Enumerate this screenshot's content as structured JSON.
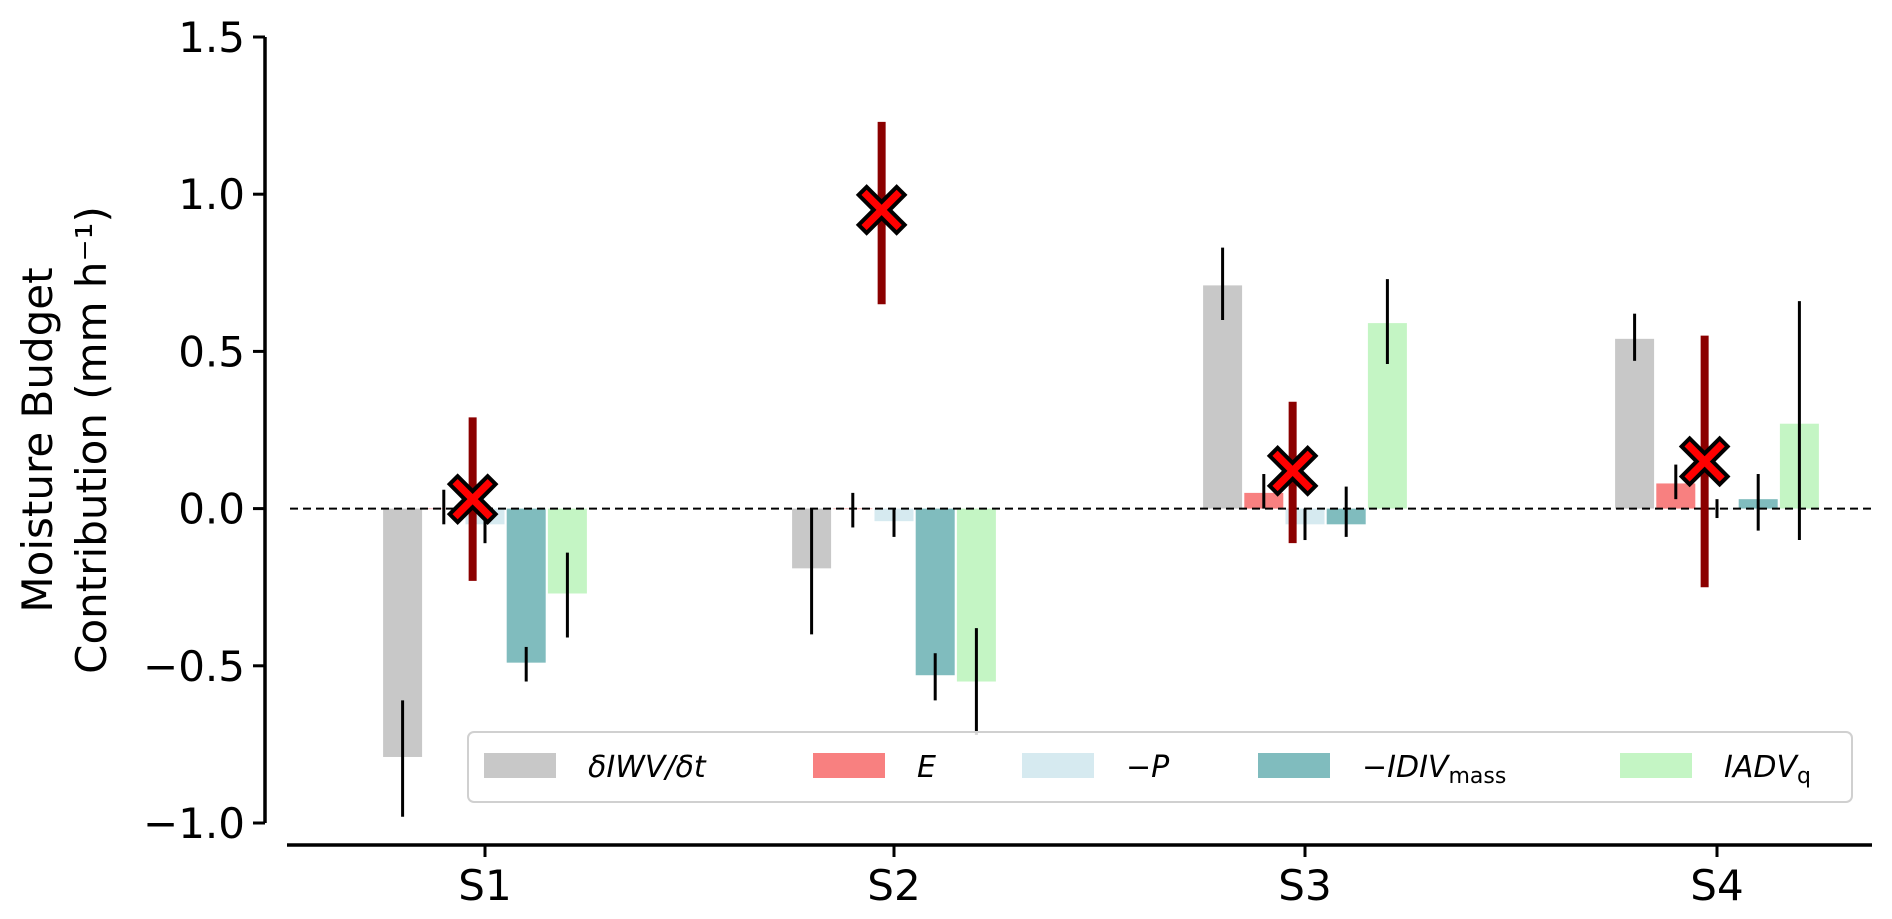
{
  "chart_data": {
    "type": "bar",
    "title": "",
    "xlabel": "",
    "ylabel_line1": "Moisture Budget",
    "ylabel_line2": "Contribution (mm h⁻¹)",
    "ylim": [
      -1.0,
      1.5
    ],
    "yticks": [
      -1.0,
      -0.5,
      0.0,
      0.5,
      1.0,
      1.5
    ],
    "ytick_labels": [
      "−1.0",
      "−0.5",
      "0.0",
      "0.5",
      "1.0",
      "1.5"
    ],
    "categories": [
      "S1",
      "S2",
      "S3",
      "S4"
    ],
    "zero_line": "dashed",
    "grid": false,
    "legend_position": "bottom",
    "series": [
      {
        "name": "δIWV/δt",
        "name_main": "δIWV/δt",
        "name_sub": "",
        "color": "#c8c8c8",
        "values": [
          -0.79,
          -0.19,
          0.71,
          0.54
        ],
        "err_low": [
          -0.98,
          -0.4,
          0.6,
          0.47
        ],
        "err_high": [
          -0.61,
          0.0,
          0.83,
          0.62
        ]
      },
      {
        "name": "E",
        "name_main": "E",
        "name_sub": "",
        "color": "#f88080",
        "values": [
          0.0,
          0.0,
          0.05,
          0.08
        ],
        "err_low": [
          -0.05,
          -0.06,
          0.0,
          0.03
        ],
        "err_high": [
          0.06,
          0.05,
          0.11,
          0.14
        ]
      },
      {
        "name": "−P",
        "name_main": "−P",
        "name_sub": "",
        "color": "#d6eaf0",
        "values": [
          -0.05,
          -0.04,
          -0.05,
          0.0
        ],
        "err_low": [
          -0.11,
          -0.09,
          -0.1,
          -0.03
        ],
        "err_high": [
          0.0,
          0.0,
          0.0,
          0.03
        ]
      },
      {
        "name": "−IDIVmass",
        "name_main": "−IDIV",
        "name_sub": "mass",
        "color": "#80bcbe",
        "values": [
          -0.49,
          -0.53,
          -0.05,
          0.03
        ],
        "err_low": [
          -0.55,
          -0.61,
          -0.09,
          -0.07
        ],
        "err_high": [
          -0.44,
          -0.46,
          0.07,
          0.11
        ]
      },
      {
        "name": "IADVq",
        "name_main": "IADV",
        "name_sub": "q",
        "color": "#c4f5c4",
        "values": [
          -0.27,
          -0.55,
          0.59,
          0.27
        ],
        "err_low": [
          -0.41,
          -0.72,
          0.46,
          -0.1
        ],
        "err_high": [
          -0.14,
          -0.38,
          0.73,
          0.66
        ]
      }
    ],
    "residual": {
      "color": "#8b0000",
      "marker_color": "#ff0000",
      "values": [
        0.03,
        0.95,
        0.12,
        0.15
      ],
      "err_low": [
        -0.23,
        0.65,
        -0.11,
        -0.25
      ],
      "err_high": [
        0.29,
        1.23,
        0.34,
        0.55
      ]
    }
  }
}
